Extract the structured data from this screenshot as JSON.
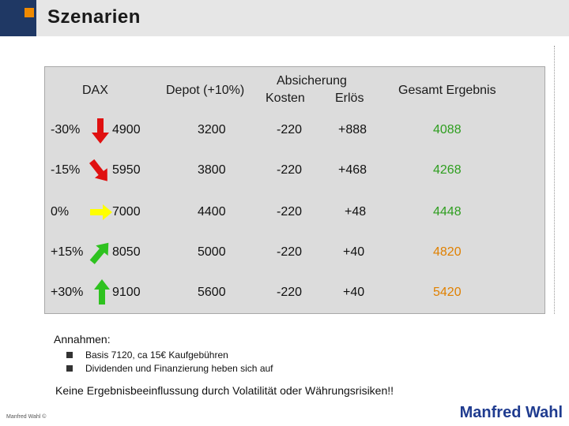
{
  "header": {
    "title": "Szenarien"
  },
  "table": {
    "headers": {
      "dax": "DAX",
      "depot": "Depot (+10%)",
      "absicherung": "Absicherung",
      "kosten": "Kosten",
      "erloes": "Erlös",
      "gesamt": "Gesamt Ergebnis"
    },
    "rows": [
      {
        "pct": "-30%",
        "dax": "4900",
        "depot": "3200",
        "kosten": "-220",
        "erloes": "+888",
        "gesamt": "4088",
        "arrow": "arrow-down-icon",
        "arrow_color": "#e01010"
      },
      {
        "pct": "-15%",
        "dax": "5950",
        "depot": "3800",
        "kosten": "-220",
        "erloes": "+468",
        "gesamt": "4268",
        "arrow": "arrow-down-right-icon",
        "arrow_color": "#e01010"
      },
      {
        "pct": "0%",
        "dax": "7000",
        "depot": "4400",
        "kosten": "-220",
        "erloes": "+48",
        "gesamt": "4448",
        "arrow": "arrow-right-icon",
        "arrow_color": "#ffff00"
      },
      {
        "pct": "+15%",
        "dax": "8050",
        "depot": "5000",
        "kosten": "-220",
        "erloes": "+40",
        "gesamt": "4820",
        "arrow": "arrow-up-right-icon",
        "arrow_color": "#2ec21f"
      },
      {
        "pct": "+30%",
        "dax": "9100",
        "depot": "5600",
        "kosten": "-220",
        "erloes": "+40",
        "gesamt": "5420",
        "arrow": "arrow-up-icon",
        "arrow_color": "#2ec21f"
      }
    ],
    "colors": {
      "gesamt_green": "#2e9e1f",
      "gesamt_orange": "#e08000"
    }
  },
  "notes": {
    "label": "Annahmen:",
    "bullets": [
      "Basis 7120, ca 15€ Kaufgebühren",
      "Dividenden und Finanzierung heben sich auf"
    ],
    "conclusion": "Keine Ergebnisbeeinflussung durch Volatilität oder Währungsrisiken!!"
  },
  "footer": {
    "copyright": "Manfred Wahl ©",
    "brand": "Manfred Wahl"
  }
}
